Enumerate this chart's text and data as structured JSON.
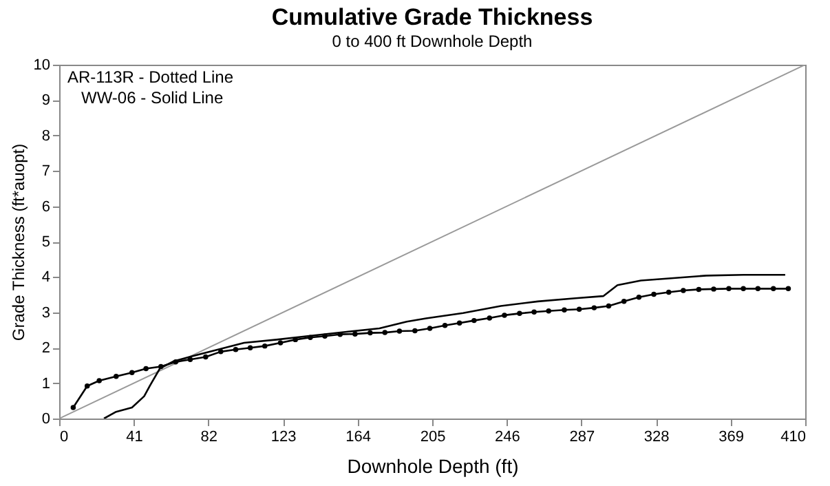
{
  "chart_data": {
    "type": "line",
    "title": "Cumulative Grade Thickness",
    "subtitle": "0 to 400 ft Downhole Depth",
    "xlabel": "Downhole Depth (ft)",
    "ylabel": "Grade Thickness (ft*auopt)",
    "annotations": [
      "AR-113R - Dotted Line",
      "WW-06 - Solid Line"
    ],
    "xlim": [
      0,
      410
    ],
    "xticks": [
      0,
      41,
      82,
      123,
      164,
      205,
      246,
      287,
      328,
      369,
      410
    ],
    "ylim": [
      0,
      10
    ],
    "yticks": [
      0,
      1,
      2,
      3,
      4,
      5,
      6,
      7,
      8,
      9,
      10
    ],
    "grid": false,
    "series": [
      {
        "color": "#999999",
        "marker": "none",
        "x": [
          0,
          410
        ],
        "values": [
          0,
          10
        ]
      },
      {
        "color": "#000000",
        "marker": "circle",
        "x": [
          7.7,
          15.4,
          22,
          31.3,
          40,
          47.7,
          55.9,
          64,
          72,
          80.5,
          88.8,
          97,
          105,
          113,
          121.6,
          129.8,
          138,
          146,
          154.4,
          162.6,
          170.9,
          179,
          187,
          195.5,
          203.7,
          212,
          220,
          228,
          236.5,
          244.7,
          253,
          261,
          269,
          277.6,
          285.8,
          294,
          302,
          310.4,
          318.6,
          326.8,
          335,
          343,
          351.5,
          359.7,
          368,
          376,
          384,
          392.5,
          400.7
        ],
        "values": [
          0.31,
          0.92,
          1.07,
          1.19,
          1.3,
          1.41,
          1.47,
          1.6,
          1.67,
          1.74,
          1.89,
          1.95,
          2.0,
          2.05,
          2.14,
          2.23,
          2.29,
          2.33,
          2.38,
          2.39,
          2.42,
          2.43,
          2.47,
          2.48,
          2.55,
          2.63,
          2.7,
          2.77,
          2.84,
          2.92,
          2.97,
          3.01,
          3.04,
          3.07,
          3.09,
          3.13,
          3.18,
          3.31,
          3.43,
          3.51,
          3.57,
          3.62,
          3.65,
          3.66,
          3.67,
          3.67,
          3.67,
          3.67,
          3.67
        ]
      },
      {
        "color": "#000000",
        "marker": "none",
        "x": [
          24.6,
          31.3,
          40,
          46.7,
          50,
          55.4,
          63,
          73,
          88.8,
          101.6,
          119.5,
          140,
          158,
          176,
          191,
          201.6,
          222,
          242.7,
          263,
          283.7,
          299,
          306.8,
          319.7,
          335,
          355.6,
          376,
          399
        ],
        "values": [
          0,
          0.19,
          0.31,
          0.63,
          0.94,
          1.42,
          1.62,
          1.76,
          1.97,
          2.14,
          2.23,
          2.35,
          2.45,
          2.55,
          2.74,
          2.83,
          2.98,
          3.18,
          3.31,
          3.4,
          3.46,
          3.77,
          3.9,
          3.96,
          4.04,
          4.06,
          4.06
        ]
      }
    ]
  }
}
